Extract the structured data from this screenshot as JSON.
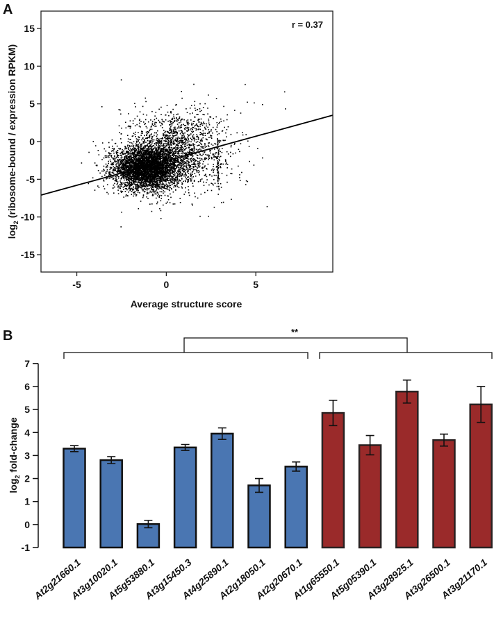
{
  "chart_data": [
    {
      "panel_label": "A",
      "type": "scatter",
      "xlabel": "Average structure score",
      "ylabel_main": "log",
      "ylabel_sub": "2",
      "ylabel_rest": " (ribosome-bound / expression RPKM)",
      "xlim": [
        -7,
        9.3
      ],
      "ylim": [
        -17.3,
        17.3
      ],
      "xticks": [
        -5,
        0,
        5
      ],
      "yticks": [
        15,
        10,
        5,
        0,
        -5,
        -10,
        -15
      ],
      "annotation": "r = 0.37",
      "r": 0.37,
      "regression": {
        "slope": 0.65,
        "intercept": -2.55
      },
      "grid": false,
      "point_distribution": {
        "approx_points": 6000,
        "clusters": [
          {
            "weight": 0.72,
            "mean": [
              -1.1,
              -3.5
            ],
            "sd": [
              0.9,
              1.4
            ]
          },
          {
            "weight": 0.25,
            "mean": [
              0.6,
              -1.0
            ],
            "sd": [
              1.3,
              2.6
            ]
          },
          {
            "weight": 0.03,
            "mean": [
              1.0,
              -1.5
            ],
            "sd": [
              2.4,
              3.8
            ]
          }
        ],
        "vertical_streak": {
          "x": 2.9,
          "y_range": [
            -6.5,
            0.5
          ],
          "count": 60
        }
      }
    },
    {
      "panel_label": "B",
      "type": "bar",
      "ylabel_main": "log",
      "ylabel_sub": "2",
      "ylabel_rest": " fold-change",
      "ylim": [
        -1,
        7
      ],
      "yticks": [
        7,
        6,
        5,
        4,
        3,
        2,
        1,
        0,
        -1
      ],
      "categories": [
        "At2g21660.1",
        "At3g10020.1",
        "At5g53880.1",
        "At3g15450.3",
        "At4g25890.1",
        "At2g18050.1",
        "At2g20670.1",
        "At1g65550.1",
        "At5g05390.1",
        "At3g28925.1",
        "At3g26500.1",
        "At3g21170.1"
      ],
      "values": [
        3.3,
        2.8,
        0.02,
        3.35,
        3.95,
        1.7,
        2.52,
        4.85,
        3.45,
        5.78,
        3.67,
        5.22
      ],
      "errors": [
        0.13,
        0.15,
        0.16,
        0.13,
        0.25,
        0.3,
        0.2,
        0.55,
        0.42,
        0.5,
        0.26,
        0.78
      ],
      "groups": [
        0,
        0,
        0,
        0,
        0,
        0,
        0,
        1,
        1,
        1,
        1,
        1
      ],
      "group_colors": [
        "#4a76b2",
        "#9a2a2a"
      ],
      "significance": "**",
      "grid": false
    }
  ]
}
